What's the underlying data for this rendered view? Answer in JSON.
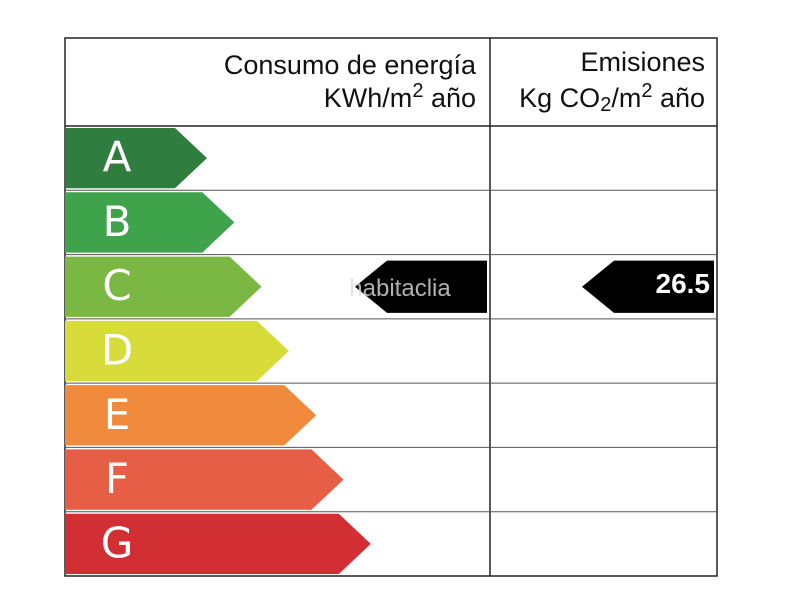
{
  "header": {
    "consumption": {
      "title": "Consumo de energía",
      "unit": [
        "KWh/m",
        "2",
        " año"
      ]
    },
    "emissions": {
      "title": "Emisiones",
      "unit": [
        "Kg CO",
        "2",
        "/m",
        "2",
        " año"
      ]
    }
  },
  "ratings": [
    {
      "letter": "A",
      "color": "#2f7d3f"
    },
    {
      "letter": "B",
      "color": "#3ea34b"
    },
    {
      "letter": "C",
      "color": "#7bb843"
    },
    {
      "letter": "D",
      "color": "#d8dc3b"
    },
    {
      "letter": "E",
      "color": "#f08b3d"
    },
    {
      "letter": "F",
      "color": "#e75e46"
    },
    {
      "letter": "G",
      "color": "#d12f33"
    }
  ],
  "consumption": {
    "rating": "C"
  },
  "emissions": {
    "rating": "C",
    "value": 26.5
  },
  "watermark": "habitaclia"
}
